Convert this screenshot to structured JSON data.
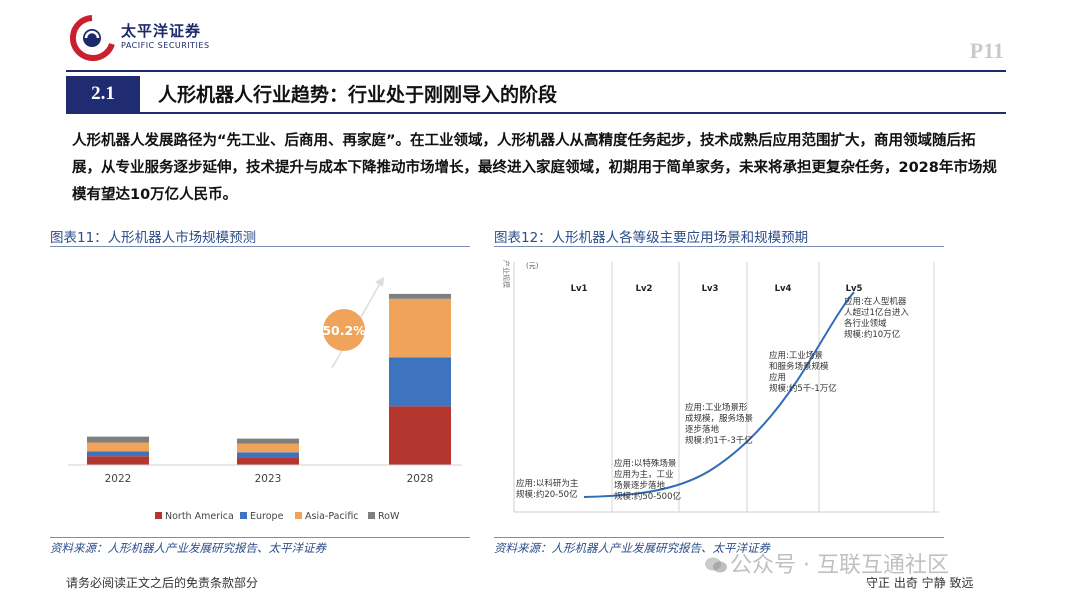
{
  "header": {
    "logo_cn": "太平洋证券",
    "logo_en": "PACIFIC SECURITIES",
    "page_num": "P11"
  },
  "section": {
    "number": "2.1",
    "title": "人形机器人行业趋势：行业处于刚刚导入的阶段"
  },
  "intro_text": "人形机器人发展路径为“先工业、后商用、再家庭”。在工业领域，人形机器人从高精度任务起步，技术成熟后应用范围扩大，商用领域随后拓展，从专业服务逐步延伸，技术提升与成本下降推动市场增长，最终进入家庭领域，初期用于简单家务，未来将承担更复杂任务，2028年市场规模有望达10万亿人民币。",
  "figure11": {
    "title": "图表11：人形机器人市场规模预测",
    "growth_label": "50.2%",
    "source": "资料来源：人形机器人产业发展研究报告、太平洋证券",
    "chart_data": {
      "type": "bar",
      "stacked": true,
      "categories": [
        "2022",
        "2023",
        "2028"
      ],
      "series": [
        {
          "name": "North America",
          "color": "#b5352f",
          "values": [
            0.9,
            0.8,
            6.0
          ]
        },
        {
          "name": "Europe",
          "color": "#3d73bf",
          "values": [
            0.5,
            0.5,
            5.0
          ]
        },
        {
          "name": "Asia-Pacific",
          "color": "#f0a35a",
          "values": [
            0.9,
            0.9,
            6.0
          ]
        },
        {
          "name": "RoW",
          "color": "#7f7f7f",
          "values": [
            0.6,
            0.5,
            0.5
          ]
        }
      ],
      "ylim": [
        0,
        18
      ],
      "legend_position": "bottom"
    }
  },
  "figure12": {
    "title": "图表12：人形机器人各等级主要应用场景和规模预期",
    "source": "资料来源：人形机器人产业发展研究报告、太平洋证券",
    "y_axis_label": "产业规模",
    "unit": "(元)",
    "levels": [
      "Lv1",
      "Lv2",
      "Lv3",
      "Lv4",
      "Lv5"
    ],
    "notes": [
      [
        "应用:以科研为主",
        "规模:约20-50亿"
      ],
      [
        "应用:以特殊场景",
        "应用为主，工业",
        "场景逐步落地",
        "规模:约50-500亿"
      ],
      [
        "应用:工业场景形",
        "成规模，服务场景",
        "逐步落地",
        "规模:约1千-3千亿"
      ],
      [
        "应用:工业场景",
        "和服务场景规模",
        "应用",
        "规模:约5千-1万亿"
      ],
      [
        "应用:在人型机器",
        "人超过1亿台进入",
        "各行业领域",
        "规模:约10万亿"
      ]
    ]
  },
  "footer": {
    "disclaimer": "请务必阅读正文之后的免责条款部分",
    "motto": "守正 出奇 宁静 致远",
    "watermark": "公众号 · 互联互通社区"
  },
  "colors": {
    "brand_navy": "#1f2c72",
    "logo_red": "#c8202f",
    "figure_blue": "#2b4d8a",
    "curve_blue": "#2f6db5"
  }
}
